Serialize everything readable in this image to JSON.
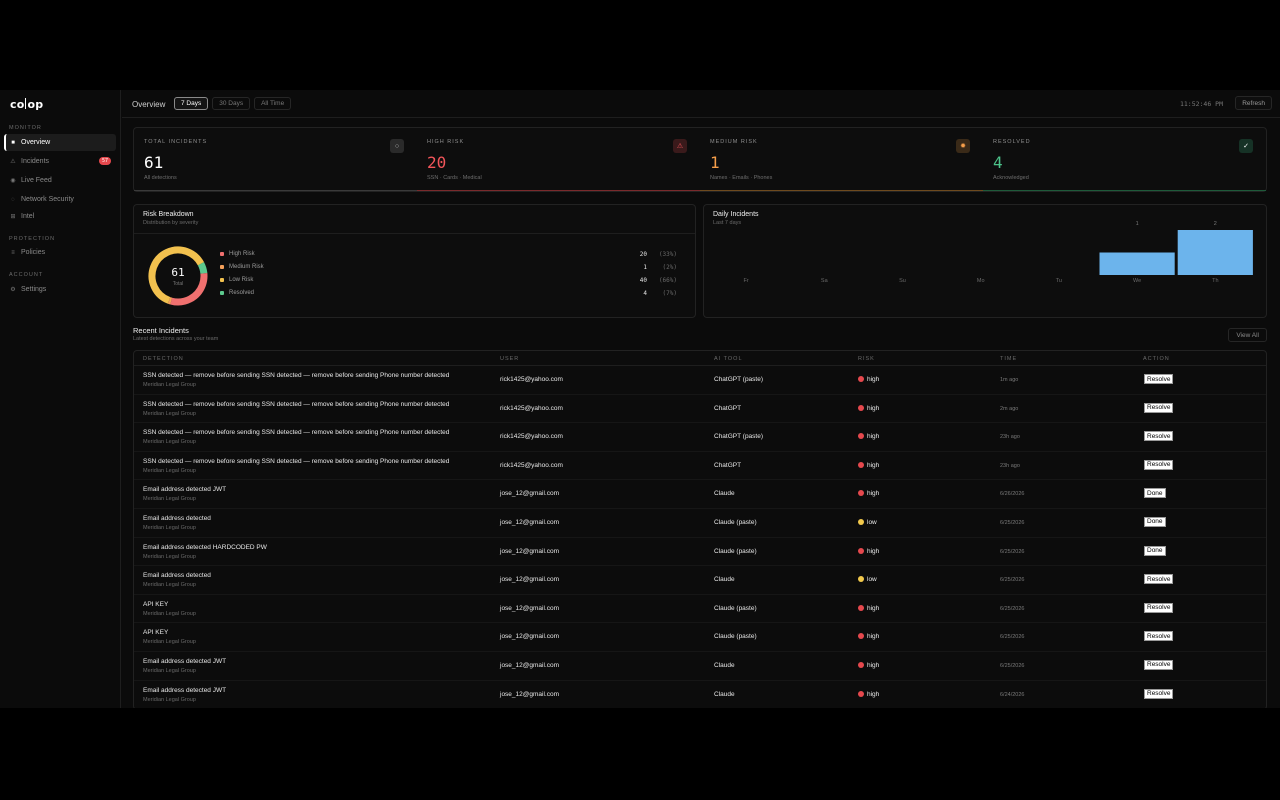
{
  "brand": {
    "logo_left": "co",
    "logo_right": "op"
  },
  "sidebar": {
    "monitor_label": "MONITOR",
    "protection_label": "PROTECTION",
    "account_label": "ACCOUNT",
    "items": [
      {
        "label": "Overview",
        "icon": "square-icon"
      },
      {
        "label": "Incidents",
        "icon": "warning-icon",
        "badge": "57"
      },
      {
        "label": "Live Feed",
        "icon": "radio-icon"
      },
      {
        "label": "Network Security",
        "icon": "globe-icon"
      },
      {
        "label": "Intel",
        "icon": "grid-icon"
      },
      {
        "label": "Policies",
        "icon": "list-icon"
      },
      {
        "label": "Settings",
        "icon": "gear-icon"
      }
    ]
  },
  "header": {
    "title": "Overview",
    "tabs": [
      "7 Days",
      "30 Days",
      "All Time"
    ],
    "active_tab": "7 Days",
    "clock": "11:52:46 PM",
    "refresh_label": "Refresh"
  },
  "stats": [
    {
      "label": "TOTAL INCIDENTS",
      "value": "61",
      "sub": "All detections",
      "icon": "circle-icon",
      "color": "#ffffff",
      "bar_color": "#3a3a3a"
    },
    {
      "label": "HIGH RISK",
      "value": "20",
      "sub": "SSN · Cards · Medical",
      "icon": "warning-icon",
      "color": "#f2555a",
      "bar_color": "#7a2a2c"
    },
    {
      "label": "MEDIUM RISK",
      "value": "1",
      "sub": "Names · Emails · Phones",
      "icon": "sun-icon",
      "color": "#f59e4a",
      "bar_color": "#6e4a1e"
    },
    {
      "label": "RESOLVED",
      "value": "4",
      "sub": "Acknowledged",
      "icon": "check-icon",
      "color": "#4cc38a",
      "bar_color": "#1e5a3a"
    }
  ],
  "risk_breakdown": {
    "title": "Risk Breakdown",
    "subtitle": "Distribution by severity",
    "total": "61",
    "total_label": "Total",
    "items": [
      {
        "label": "High Risk",
        "value": "20",
        "pct": "(33%)",
        "color": "#f0706f"
      },
      {
        "label": "Medium Risk",
        "value": "1",
        "pct": "(2%)",
        "color": "#f5a05a"
      },
      {
        "label": "Low Risk",
        "value": "40",
        "pct": "(66%)",
        "color": "#f2c14e"
      },
      {
        "label": "Resolved",
        "value": "4",
        "pct": "(7%)",
        "color": "#5cc98e"
      }
    ]
  },
  "chart_data": {
    "type": "bar",
    "title": "Daily Incidents",
    "subtitle": "Last 7 days",
    "categories": [
      "Fr",
      "Sa",
      "Su",
      "Mo",
      "Tu",
      "We",
      "Th"
    ],
    "values": [
      0,
      0,
      0,
      0,
      0,
      1,
      2
    ],
    "value_labels": [
      "",
      "",
      "",
      "",
      "",
      "1",
      "2"
    ],
    "bar_color": "#6cb4ec"
  },
  "incidents": {
    "title": "Recent Incidents",
    "subtitle": "Latest detections across your team",
    "view_all": "View All",
    "columns": [
      "DETECTION",
      "USER",
      "AI TOOL",
      "RISK",
      "TIME",
      "ACTION"
    ],
    "rows": [
      {
        "detection": "SSN detected — remove before sending SSN detected — remove before sending Phone number detected",
        "org": "Meridian Legal Group",
        "user": "rick1425@yahoo.com",
        "tool": "ChatGPT (paste)",
        "risk": "high",
        "time": "1m ago",
        "action": "Resolve"
      },
      {
        "detection": "SSN detected — remove before sending SSN detected — remove before sending Phone number detected",
        "org": "Meridian Legal Group",
        "user": "rick1425@yahoo.com",
        "tool": "ChatGPT",
        "risk": "high",
        "time": "2m ago",
        "action": "Resolve"
      },
      {
        "detection": "SSN detected — remove before sending SSN detected — remove before sending Phone number detected",
        "org": "Meridian Legal Group",
        "user": "rick1425@yahoo.com",
        "tool": "ChatGPT (paste)",
        "risk": "high",
        "time": "23h ago",
        "action": "Resolve"
      },
      {
        "detection": "SSN detected — remove before sending SSN detected — remove before sending Phone number detected",
        "org": "Meridian Legal Group",
        "user": "rick1425@yahoo.com",
        "tool": "ChatGPT",
        "risk": "high",
        "time": "23h ago",
        "action": "Resolve"
      },
      {
        "detection": "Email address detected JWT",
        "org": "Meridian Legal Group",
        "user": "jose_12@gmail.com",
        "tool": "Claude",
        "risk": "high",
        "time": "6/26/2026",
        "action": "Done"
      },
      {
        "detection": "Email address detected",
        "org": "Meridian Legal Group",
        "user": "jose_12@gmail.com",
        "tool": "Claude (paste)",
        "risk": "low",
        "time": "6/25/2026",
        "action": "Done"
      },
      {
        "detection": "Email address detected HARDCODED PW",
        "org": "Meridian Legal Group",
        "user": "jose_12@gmail.com",
        "tool": "Claude (paste)",
        "risk": "high",
        "time": "6/25/2026",
        "action": "Done"
      },
      {
        "detection": "Email address detected",
        "org": "Meridian Legal Group",
        "user": "jose_12@gmail.com",
        "tool": "Claude",
        "risk": "low",
        "time": "6/25/2026",
        "action": "Resolve"
      },
      {
        "detection": "API KEY",
        "org": "Meridian Legal Group",
        "user": "jose_12@gmail.com",
        "tool": "Claude (paste)",
        "risk": "high",
        "time": "6/25/2026",
        "action": "Resolve"
      },
      {
        "detection": "API KEY",
        "org": "Meridian Legal Group",
        "user": "jose_12@gmail.com",
        "tool": "Claude (paste)",
        "risk": "high",
        "time": "6/25/2026",
        "action": "Resolve"
      },
      {
        "detection": "Email address detected JWT",
        "org": "Meridian Legal Group",
        "user": "jose_12@gmail.com",
        "tool": "Claude",
        "risk": "high",
        "time": "6/25/2026",
        "action": "Resolve"
      },
      {
        "detection": "Email address detected JWT",
        "org": "Meridian Legal Group",
        "user": "jose_12@gmail.com",
        "tool": "Claude",
        "risk": "high",
        "time": "6/24/2026",
        "action": "Resolve"
      }
    ]
  },
  "colors": {
    "high": "#e5484d",
    "low": "#f2c94c"
  }
}
